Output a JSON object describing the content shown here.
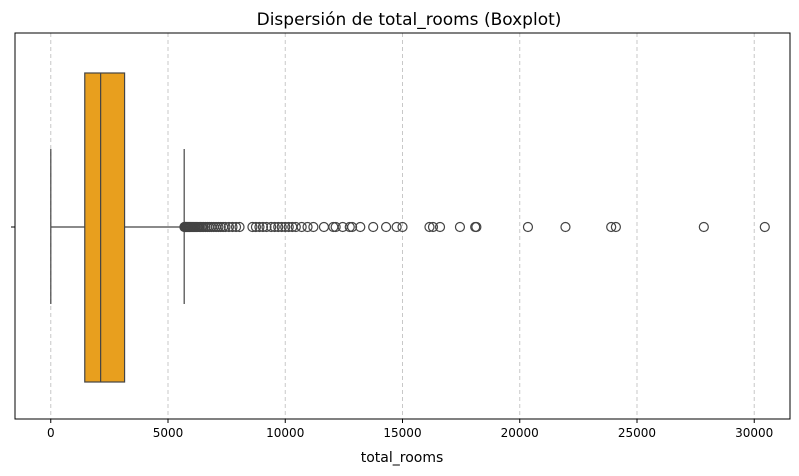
{
  "chart_data": {
    "type": "boxplot",
    "title": "Dispersión de total_rooms (Boxplot)",
    "xlabel": "total_rooms",
    "ylabel": "",
    "xlim": [
      -1525,
      31525
    ],
    "x_ticks": [
      0,
      5000,
      10000,
      15000,
      20000,
      25000,
      30000
    ],
    "grid": "x-dashed",
    "orientation": "horizontal",
    "box_color": "#e89f1e",
    "line_color": "#444444",
    "box": {
      "whisker_low": 2,
      "q1": 1450,
      "median": 2127,
      "q3": 3148,
      "whisker_high": 5690
    },
    "outliers": [
      5700,
      5720,
      5740,
      5760,
      5790,
      5810,
      5840,
      5870,
      5900,
      5930,
      5960,
      6000,
      6040,
      6080,
      6120,
      6170,
      6220,
      6270,
      6330,
      6390,
      6450,
      6520,
      6600,
      6680,
      6760,
      6850,
      6950,
      7050,
      7150,
      7250,
      7350,
      7450,
      7600,
      7750,
      7900,
      8050,
      8600,
      8750,
      8900,
      9050,
      9200,
      9400,
      9550,
      9700,
      9850,
      10000,
      10150,
      10300,
      10450,
      10700,
      10950,
      11200,
      11650,
      12050,
      12150,
      12450,
      12750,
      12850,
      13200,
      13750,
      14300,
      14750,
      15000,
      16150,
      16300,
      16600,
      17450,
      18100,
      18150,
      20350,
      21950,
      23900,
      24100,
      27850,
      30450
    ]
  }
}
